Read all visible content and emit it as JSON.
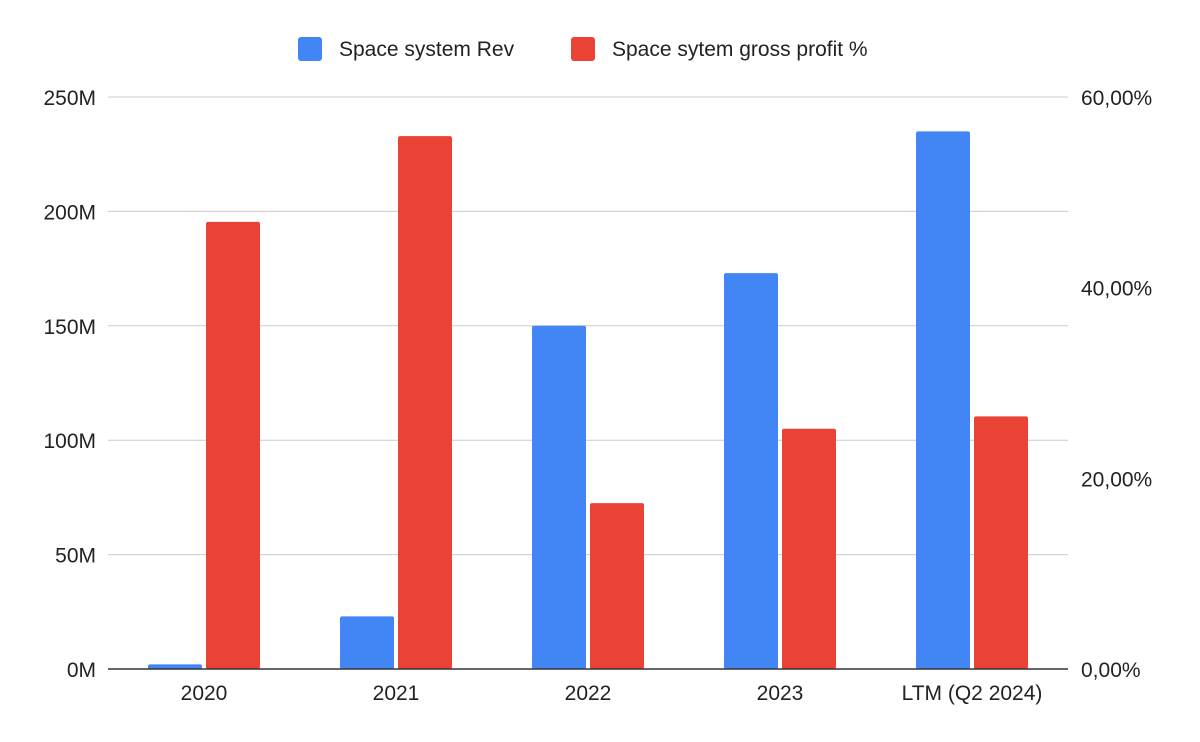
{
  "chart_data": {
    "type": "bar",
    "categories": [
      "2020",
      "2021",
      "2022",
      "2023",
      "LTM (Q2 2024)"
    ],
    "series": [
      {
        "name": "Space system Rev",
        "axis": "left",
        "color": "#4285F4",
        "values": [
          2000000,
          23000000,
          150000000,
          173000000,
          235000000
        ]
      },
      {
        "name": "Space sytem gross profit %",
        "axis": "right",
        "color": "#EA4335",
        "values": [
          46.9,
          55.9,
          17.4,
          25.2,
          26.5
        ]
      }
    ],
    "y_left": {
      "range": [
        0,
        250000000
      ],
      "ticks": [
        0,
        50000000,
        100000000,
        150000000,
        200000000,
        250000000
      ],
      "tick_labels": [
        "0M",
        "50M",
        "100M",
        "150M",
        "200M",
        "250M"
      ]
    },
    "y_right": {
      "range": [
        0,
        60
      ],
      "ticks": [
        0,
        20,
        40,
        60
      ],
      "tick_labels": [
        "0,00%",
        "20,00%",
        "40,00%",
        "60,00%"
      ]
    },
    "title": "",
    "xlabel": "",
    "ylabel": "",
    "grid": true,
    "legend_position": "top-center"
  }
}
